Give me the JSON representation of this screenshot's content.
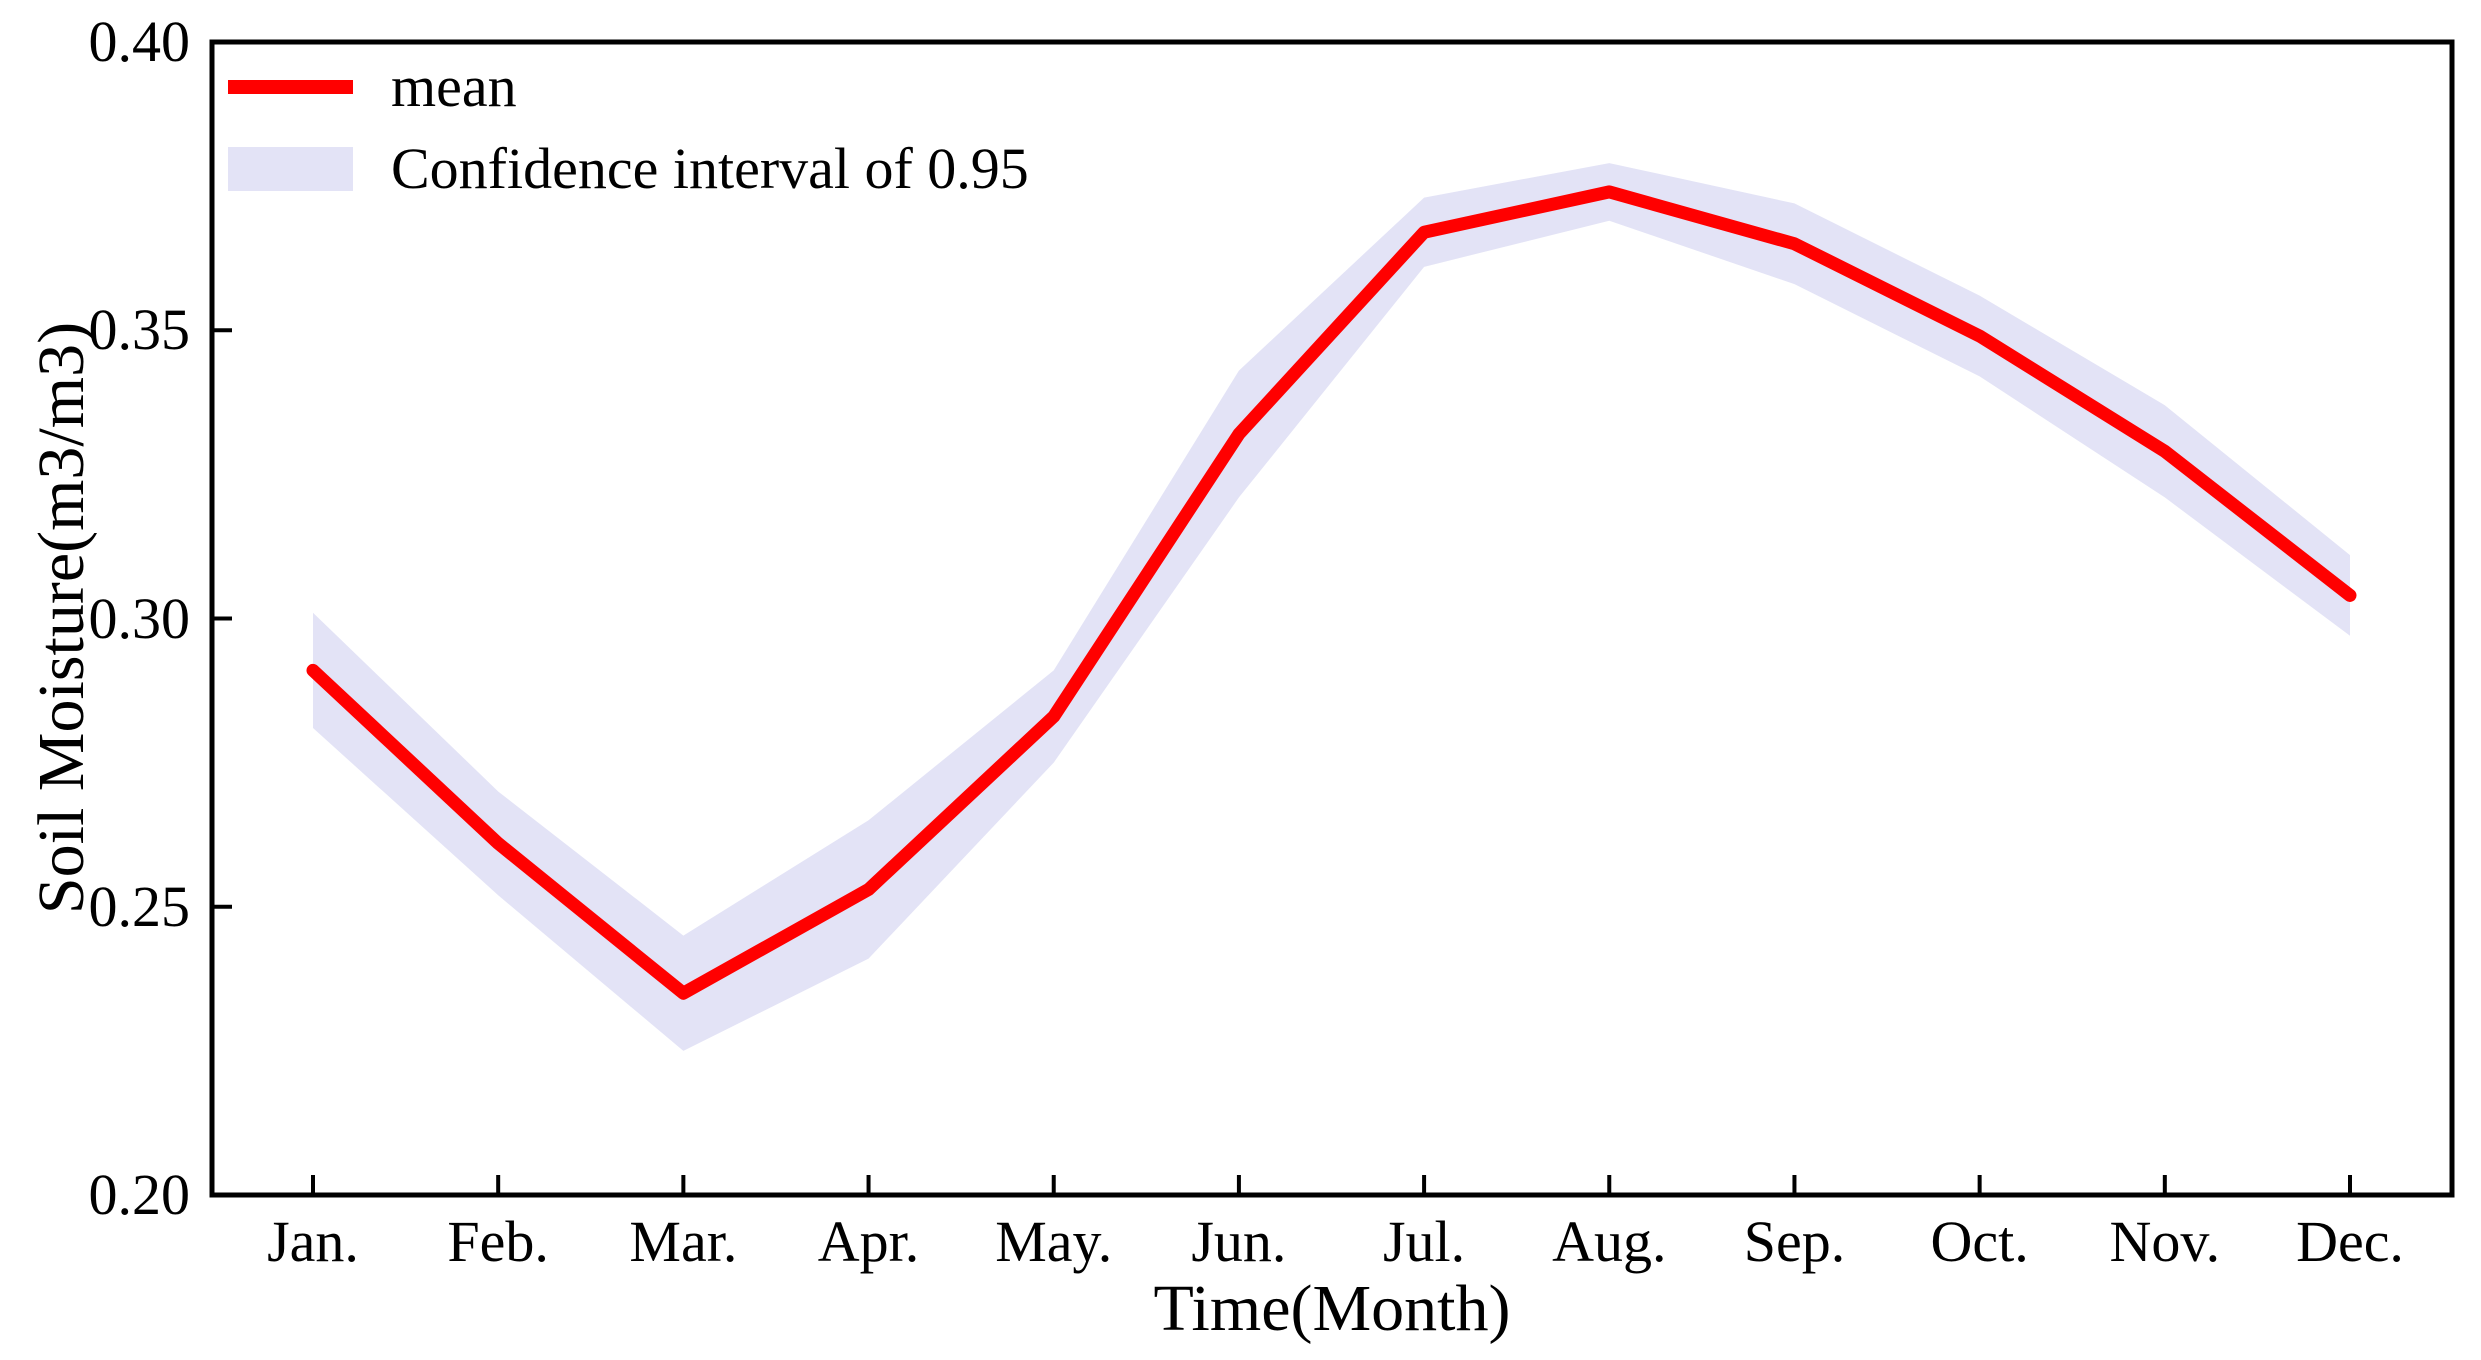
{
  "chart_data": {
    "type": "line",
    "title": "",
    "xlabel": "Time(Month)",
    "ylabel": "Soil Moisture(m3/m3)",
    "categories": [
      "Jan.",
      "Feb.",
      "Mar.",
      "Apr.",
      "May.",
      "Jun.",
      "Jul.",
      "Aug.",
      "Sep.",
      "Oct.",
      "Nov.",
      "Dec."
    ],
    "y_ticks": [
      0.2,
      0.25,
      0.3,
      0.35,
      0.4
    ],
    "y_tick_labels": [
      "0.20",
      "0.25",
      "0.30",
      "0.35",
      "0.40"
    ],
    "ylim": [
      0.2,
      0.4
    ],
    "grid": false,
    "legend_position": "upper-left",
    "series": [
      {
        "name": "mean",
        "kind": "line",
        "color": "#ff0000",
        "values": [
          0.291,
          0.261,
          0.235,
          0.253,
          0.283,
          0.332,
          0.367,
          0.374,
          0.365,
          0.349,
          0.329,
          0.304
        ]
      },
      {
        "name": "Confidence interval of 0.95",
        "kind": "band",
        "color": "#e3e3f6",
        "upper": [
          0.301,
          0.27,
          0.245,
          0.265,
          0.291,
          0.343,
          0.373,
          0.379,
          0.372,
          0.356,
          0.337,
          0.311
        ],
        "lower": [
          0.281,
          0.252,
          0.225,
          0.241,
          0.275,
          0.321,
          0.361,
          0.369,
          0.358,
          0.342,
          0.321,
          0.297
        ]
      }
    ]
  },
  "legend": {
    "items": [
      {
        "label": "mean",
        "swatch": "line",
        "color": "#ff0000"
      },
      {
        "label": "Confidence interval of 0.95",
        "swatch": "box",
        "color": "#e3e3f6"
      }
    ]
  },
  "axes": {
    "color": "#000000",
    "tick_color": "#000000"
  }
}
